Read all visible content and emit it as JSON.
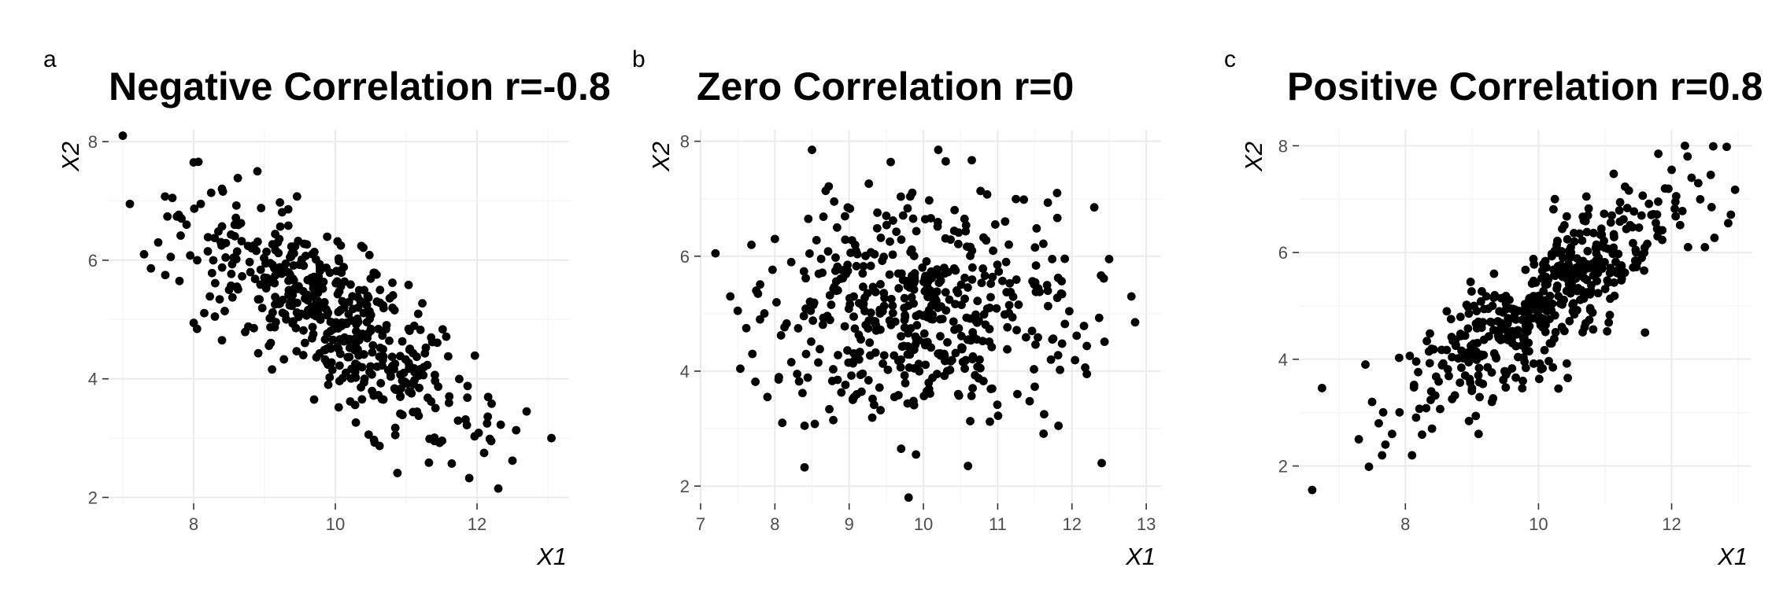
{
  "colors": {
    "point": "#000000",
    "grid": "#ebebeb",
    "tick_text": "#4d4d4d",
    "background": "#ffffff"
  },
  "chart_data": [
    {
      "panel_label": "a",
      "type": "scatter",
      "title": "Negative Correlation r=-0.8",
      "xlabel": "X1",
      "ylabel": "X2",
      "xlim": [
        6.8,
        13.3
      ],
      "ylim": [
        1.9,
        8.2
      ],
      "xticks": [
        8,
        10,
        12
      ],
      "xtick_labels": [
        "8",
        "10",
        "12"
      ],
      "yticks": [
        2,
        4,
        6,
        8
      ],
      "ytick_labels": [
        "2",
        "4",
        "6",
        "8"
      ],
      "grid": true,
      "legend": "none",
      "correlation": -0.8,
      "n_points": 500,
      "x": [
        7.0,
        7.1,
        7.3,
        7.5,
        7.6,
        7.7,
        7.8,
        7.9,
        8.0,
        8.05,
        8.1,
        8.2,
        8.3,
        8.4,
        8.5,
        8.9,
        9.7,
        9.9,
        11.4,
        12.1,
        12.2,
        12.3,
        12.5,
        12.7,
        13.05
      ],
      "y": [
        8.1,
        6.95,
        6.1,
        6.3,
        5.75,
        7.05,
        5.65,
        6.6,
        7.65,
        6.0,
        6.95,
        6.15,
        5.05,
        4.65,
        5.5,
        7.5,
        3.65,
        3.9,
        2.95,
        2.75,
        2.95,
        2.15,
        2.62,
        3.45,
        3.0
      ]
    },
    {
      "panel_label": "b",
      "type": "scatter",
      "title": "Zero Correlation r=0",
      "xlabel": "X1",
      "ylabel": "X2",
      "xlim": [
        7.0,
        13.2
      ],
      "ylim": [
        1.7,
        8.2
      ],
      "xticks": [
        7,
        8,
        9,
        10,
        11,
        12,
        13
      ],
      "xtick_labels": [
        "7",
        "8",
        "9",
        "10",
        "11",
        "12",
        "13"
      ],
      "yticks": [
        2,
        4,
        6,
        8
      ],
      "ytick_labels": [
        "2",
        "4",
        "6",
        "8"
      ],
      "grid": true,
      "legend": "none",
      "correlation": 0,
      "n_points": 500,
      "x": [
        7.2,
        7.4,
        7.5,
        7.8,
        7.9,
        8.0,
        8.1,
        8.3,
        8.4,
        8.45,
        8.5,
        9.05,
        9.7,
        9.8,
        9.9,
        10.2,
        10.3,
        10.6,
        11.8,
        12.2,
        12.3,
        12.4,
        12.5,
        12.8,
        12.85
      ],
      "y": [
        6.05,
        5.3,
        5.05,
        4.9,
        3.55,
        6.3,
        3.1,
        3.95,
        3.05,
        6.65,
        7.85,
        3.5,
        2.65,
        1.8,
        2.55,
        7.85,
        7.65,
        2.35,
        7.1,
        3.95,
        6.85,
        2.4,
        5.95,
        5.3,
        4.85
      ]
    },
    {
      "panel_label": "c",
      "type": "scatter",
      "title": "Positive Correlation r=0.8",
      "xlabel": "X1",
      "ylabel": "X2",
      "xlim": [
        6.4,
        13.2
      ],
      "ylim": [
        1.3,
        8.3
      ],
      "xticks": [
        8,
        10,
        12
      ],
      "xtick_labels": [
        "8",
        "10",
        "12"
      ],
      "yticks": [
        2,
        4,
        6,
        8
      ],
      "ytick_labels": [
        "2",
        "4",
        "6",
        "8"
      ],
      "grid": true,
      "legend": "none",
      "correlation": 0.8,
      "n_points": 500,
      "x": [
        6.6,
        7.3,
        7.4,
        7.5,
        7.6,
        7.65,
        7.7,
        7.8,
        8.1,
        8.4,
        9.1,
        9.3,
        10.3,
        11.6,
        11.8,
        11.9,
        12.0,
        12.2,
        12.3,
        12.4,
        12.6,
        12.85,
        12.5
      ],
      "y": [
        1.55,
        2.5,
        3.9,
        3.2,
        2.8,
        2.2,
        2.4,
        2.6,
        2.2,
        2.7,
        2.6,
        3.2,
        3.45,
        4.5,
        7.85,
        7.2,
        7.55,
        8.0,
        7.4,
        7.3,
        6.85,
        6.55,
        6.1
      ]
    }
  ]
}
